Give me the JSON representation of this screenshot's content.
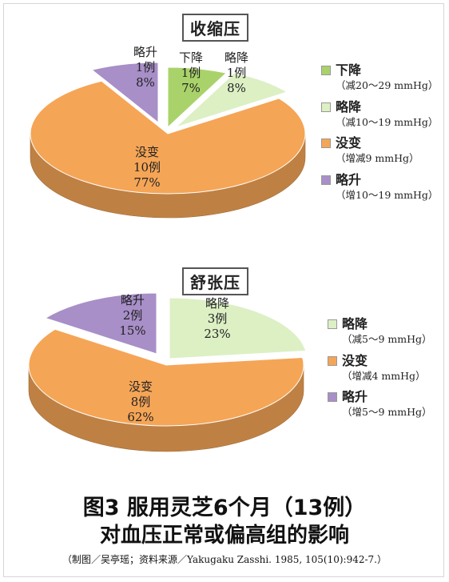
{
  "chart_data": [
    {
      "type": "pie",
      "title": "收缩压",
      "slices": [
        {
          "label": "下降",
          "count": "1例",
          "percent": 7,
          "note": "（减20～29 mmHg）",
          "color": "#a9d36a"
        },
        {
          "label": "略降",
          "count": "1例",
          "percent": 8,
          "note": "（减10～19 mmHg）",
          "color": "#dcf0c4"
        },
        {
          "label": "没变",
          "count": "10例",
          "percent": 77,
          "note": "（增减9 mmHg）",
          "color": "#f5a556"
        },
        {
          "label": "略升",
          "count": "1例",
          "percent": 8,
          "note": "（增10～19 mmHg）",
          "color": "#a88fc8"
        }
      ]
    },
    {
      "type": "pie",
      "title": "舒张压",
      "slices": [
        {
          "label": "略降",
          "count": "3例",
          "percent": 23,
          "note": "（减5～9 mmHg）",
          "color": "#dcf0c4"
        },
        {
          "label": "没变",
          "count": "8例",
          "percent": 62,
          "note": "（增减4 mmHg）",
          "color": "#f5a556"
        },
        {
          "label": "略升",
          "count": "2例",
          "percent": 15,
          "note": "（增5～9 mmHg）",
          "color": "#a88fc8"
        }
      ]
    }
  ],
  "caption": {
    "line1": "图3 服用灵芝6个月（13例）",
    "line2": "对血压正常或偏高组的影响",
    "source": "（制图／吴亭瑶；资料来源／Yakugaku Zasshi. 1985, 105(10):942-7.）"
  }
}
